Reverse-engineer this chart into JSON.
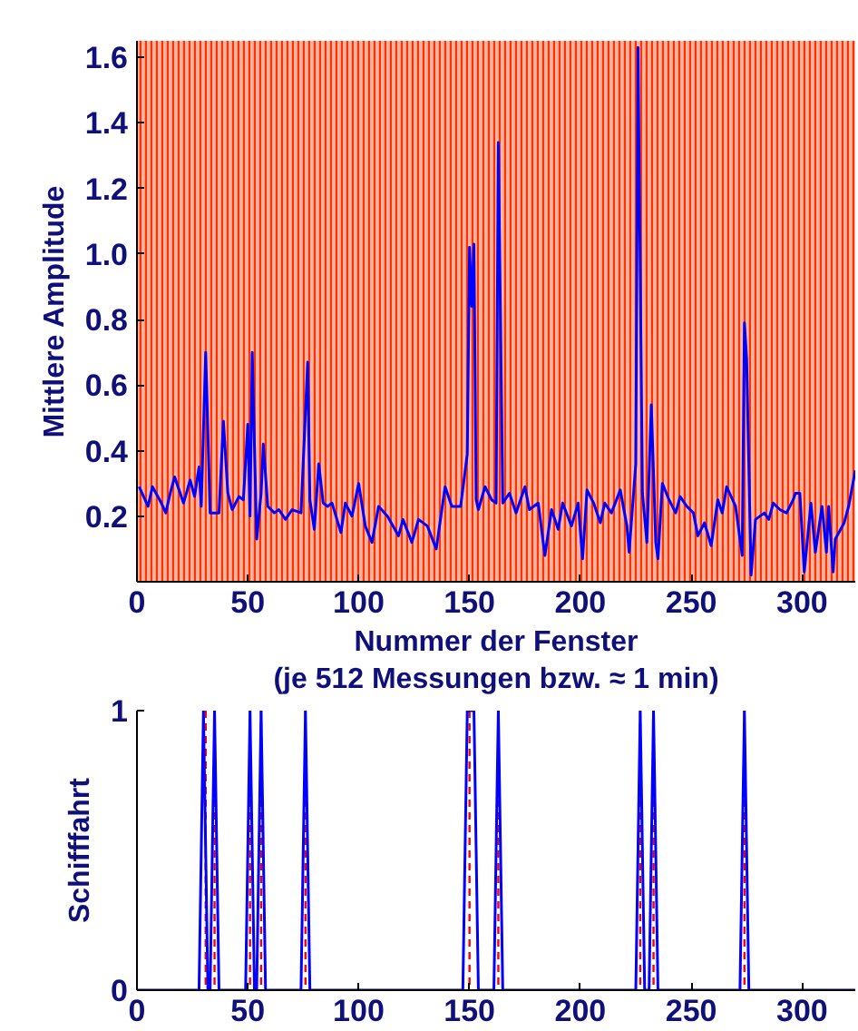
{
  "chart_data": [
    {
      "type": "line",
      "xlabel": "Nummer der Fenster\n(je 512 Messungen bzw. ≈ 1 min)",
      "ylabel": "Mittlere Amplitude",
      "xlim": [
        0,
        324
      ],
      "ylim": [
        0,
        1.65
      ],
      "xticks": [
        0,
        50,
        100,
        150,
        200,
        250,
        300
      ],
      "yticks": [
        0.2,
        0.4,
        0.6,
        0.8,
        {
          "value": 1.0,
          "label": "1.0"
        },
        1.2,
        1.4,
        1.6
      ],
      "bands": [
        {
          "axis": "x",
          "from": 0,
          "to": 324,
          "color": "#ff3300"
        }
      ],
      "series": [
        {
          "color": "#0000ff",
          "x": [
            1,
            5,
            7,
            11,
            13,
            15,
            17,
            21,
            24,
            26,
            28,
            29,
            31,
            33,
            37,
            39,
            41,
            43,
            46,
            48,
            50,
            51,
            52,
            54,
            56,
            57,
            59,
            62,
            64,
            67,
            70,
            74,
            77,
            78,
            80,
            82,
            84,
            86,
            88,
            92,
            94,
            97,
            100,
            103,
            106,
            109,
            113,
            118,
            120,
            124,
            127,
            131,
            135,
            139,
            142,
            146,
            149,
            150,
            151,
            152,
            153,
            154,
            157,
            160,
            162,
            163,
            165,
            168,
            171,
            175,
            177,
            181,
            184,
            187,
            190,
            192,
            196,
            199,
            201,
            203,
            206,
            209,
            211,
            214,
            218,
            221,
            222,
            225,
            226,
            228,
            230,
            232,
            234,
            235,
            237,
            240,
            243,
            245,
            248,
            251,
            253,
            256,
            259,
            262,
            264,
            266,
            270,
            273,
            274,
            275,
            277,
            279,
            283,
            285,
            287,
            290,
            293,
            296,
            297,
            299,
            301,
            304,
            306,
            309,
            311,
            312,
            314,
            315,
            319,
            321,
            324
          ],
          "values": [
            0.29,
            0.23,
            0.29,
            0.24,
            0.21,
            0.27,
            0.32,
            0.24,
            0.31,
            0.26,
            0.35,
            0.23,
            0.7,
            0.21,
            0.21,
            0.49,
            0.27,
            0.22,
            0.26,
            0.25,
            0.48,
            0.2,
            0.7,
            0.13,
            0.27,
            0.42,
            0.23,
            0.21,
            0.22,
            0.19,
            0.22,
            0.21,
            0.67,
            0.25,
            0.16,
            0.36,
            0.24,
            0.23,
            0.24,
            0.15,
            0.24,
            0.2,
            0.3,
            0.17,
            0.12,
            0.23,
            0.2,
            0.14,
            0.19,
            0.12,
            0.19,
            0.17,
            0.1,
            0.29,
            0.23,
            0.23,
            0.39,
            1.02,
            0.84,
            1.03,
            0.25,
            0.22,
            0.29,
            0.25,
            0.24,
            1.34,
            0.24,
            0.27,
            0.21,
            0.29,
            0.22,
            0.24,
            0.08,
            0.22,
            0.16,
            0.24,
            0.17,
            0.24,
            0.07,
            0.28,
            0.24,
            0.18,
            0.24,
            0.21,
            0.28,
            0.17,
            0.09,
            0.36,
            1.63,
            0.27,
            0.12,
            0.54,
            0.12,
            0.07,
            0.3,
            0.25,
            0.21,
            0.26,
            0.23,
            0.21,
            0.14,
            0.18,
            0.11,
            0.25,
            0.21,
            0.29,
            0.23,
            0.08,
            0.79,
            0.68,
            0.02,
            0.19,
            0.21,
            0.19,
            0.24,
            0.22,
            0.21,
            0.25,
            0.27,
            0.27,
            0.03,
            0.24,
            0.09,
            0.23,
            0.09,
            0.23,
            0.03,
            0.13,
            0.18,
            0.23,
            0.34
          ]
        }
      ]
    },
    {
      "type": "line",
      "ylabel": "Schifffahrt",
      "xlim": [
        0,
        324
      ],
      "ylim": [
        0,
        1
      ],
      "xticks": [
        0,
        50,
        100,
        150,
        200,
        250,
        300
      ],
      "yticks": [
        0,
        1
      ],
      "ref_lines": [
        {
          "axis": "x",
          "value": 31,
          "color": "#ff0000",
          "line_style": "dashed"
        },
        {
          "axis": "x",
          "value": 35,
          "color": "#ff0000",
          "line_style": "dashed"
        },
        {
          "axis": "x",
          "value": 51,
          "color": "#ff0000",
          "line_style": "dashed"
        },
        {
          "axis": "x",
          "value": 56,
          "color": "#ff0000",
          "line_style": "dashed"
        },
        {
          "axis": "x",
          "value": 76,
          "color": "#ff0000",
          "line_style": "dashed"
        },
        {
          "axis": "x",
          "value": 150,
          "color": "#ff0000",
          "line_style": "dashed"
        },
        {
          "axis": "x",
          "value": 163,
          "color": "#ff0000",
          "line_style": "dashed"
        },
        {
          "axis": "x",
          "value": 227,
          "color": "#ff0000",
          "line_style": "dashed"
        },
        {
          "axis": "x",
          "value": 233,
          "color": "#ff0000",
          "line_style": "dashed"
        },
        {
          "axis": "x",
          "value": 274,
          "color": "#ff0000",
          "line_style": "dashed"
        }
      ],
      "series": [
        {
          "color": "#0000ff",
          "x": [
            0,
            28,
            30,
            32,
            33,
            35,
            37,
            49,
            51,
            53,
            54,
            56,
            58,
            74,
            76,
            78,
            147,
            149,
            152,
            154,
            161,
            163,
            165,
            225,
            227,
            229,
            231,
            233,
            235,
            272,
            274,
            276,
            324
          ],
          "values": [
            0,
            0,
            1,
            0,
            0,
            1,
            0,
            0,
            1,
            0,
            0,
            1,
            0,
            0,
            1,
            0,
            0,
            1,
            1,
            0,
            0,
            1,
            0,
            0,
            1,
            0,
            0,
            1,
            0,
            0,
            1,
            0,
            0
          ]
        }
      ]
    }
  ]
}
